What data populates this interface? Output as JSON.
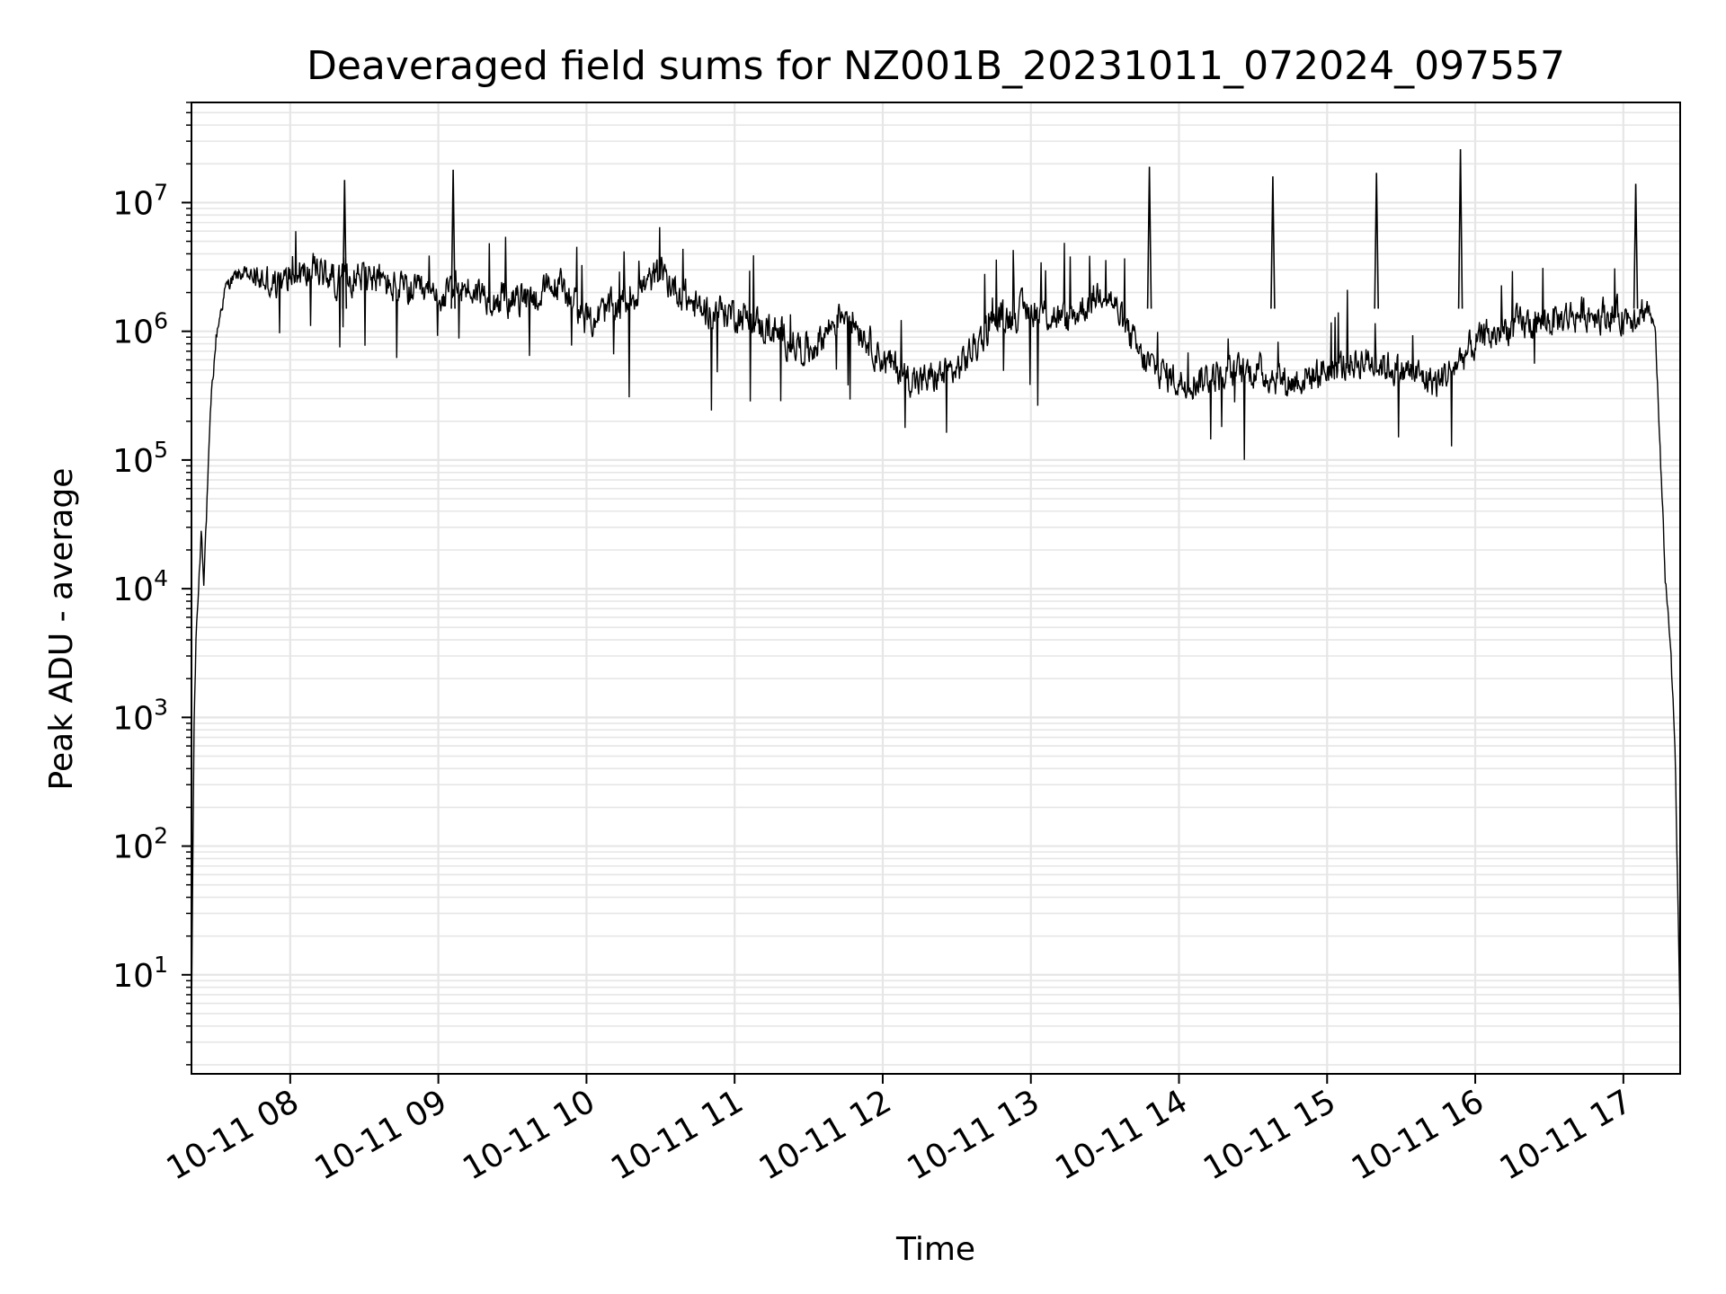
{
  "chart_data": {
    "type": "line",
    "title": "Deaveraged field sums for NZ001B_20231011_072024_097557",
    "xlabel": "Time",
    "ylabel": "Peak ADU - average",
    "yscale": "log",
    "grid": "on (major and minor)",
    "line_color": "#000000",
    "x_axis": {
      "unit": "datetime",
      "range": [
        "2023-10-11 07:20",
        "2023-10-11 17:23"
      ],
      "ticks": [
        "2023-10-11 08:00",
        "2023-10-11 09:00",
        "2023-10-11 10:00",
        "2023-10-11 11:00",
        "2023-10-11 12:00",
        "2023-10-11 13:00",
        "2023-10-11 14:00",
        "2023-10-11 15:00",
        "2023-10-11 16:00",
        "2023-10-11 17:00"
      ],
      "tick_labels": [
        "10-11 08",
        "10-11 09",
        "10-11 10",
        "10-11 11",
        "10-11 12",
        "10-11 13",
        "10-11 14",
        "10-11 15",
        "10-11 16",
        "10-11 17"
      ]
    },
    "y_axis": {
      "range": [
        1.7,
        60000000
      ],
      "tick_values": [
        10,
        100,
        1000,
        10000,
        100000,
        1000000,
        10000000
      ],
      "tick_labels": [
        {
          "base": "10",
          "exp": "1"
        },
        {
          "base": "10",
          "exp": "2"
        },
        {
          "base": "10",
          "exp": "3"
        },
        {
          "base": "10",
          "exp": "4"
        },
        {
          "base": "10",
          "exp": "5"
        },
        {
          "base": "10",
          "exp": "6"
        },
        {
          "base": "10",
          "exp": "7"
        }
      ]
    },
    "series": [
      {
        "x": [
          "2023-10-11 07:20",
          "2023-10-11 07:21",
          "2023-10-11 07:22",
          "2023-10-11 07:23",
          "2023-10-11 07:24",
          "2023-10-11 07:25",
          "2023-10-11 07:27",
          "2023-10-11 07:28",
          "2023-10-11 07:30",
          "2023-10-11 07:32",
          "2023-10-11 07:34",
          "2023-10-11 07:36",
          "2023-10-11 07:40",
          "2023-10-11 07:45",
          "2023-10-11 07:50",
          "2023-10-11 07:55",
          "2023-10-11 08:00",
          "2023-10-11 08:10",
          "2023-10-11 08:20",
          "2023-10-11 08:30",
          "2023-10-11 08:40",
          "2023-10-11 08:50",
          "2023-10-11 09:00",
          "2023-10-11 09:10",
          "2023-10-11 09:20",
          "2023-10-11 09:30",
          "2023-10-11 09:40",
          "2023-10-11 09:50",
          "2023-10-11 10:00",
          "2023-10-11 10:15",
          "2023-10-11 10:30",
          "2023-10-11 10:45",
          "2023-10-11 11:00",
          "2023-10-11 11:15",
          "2023-10-11 11:30",
          "2023-10-11 11:45",
          "2023-10-11 12:00",
          "2023-10-11 12:15",
          "2023-10-11 12:30",
          "2023-10-11 12:45",
          "2023-10-11 13:00",
          "2023-10-11 13:15",
          "2023-10-11 13:30",
          "2023-10-11 13:45",
          "2023-10-11 14:00",
          "2023-10-11 14:15",
          "2023-10-11 14:30",
          "2023-10-11 14:45",
          "2023-10-11 15:00",
          "2023-10-11 15:15",
          "2023-10-11 15:30",
          "2023-10-11 15:45",
          "2023-10-11 16:00",
          "2023-10-11 16:15",
          "2023-10-11 16:30",
          "2023-10-11 16:45",
          "2023-10-11 17:00",
          "2023-10-11 17:10",
          "2023-10-11 17:13",
          "2023-10-11 17:15",
          "2023-10-11 17:17",
          "2023-10-11 17:19",
          "2023-10-11 17:21",
          "2023-10-11 17:23"
        ],
        "y": [
          4,
          800,
          5000,
          11000,
          30000,
          12000,
          100000,
          300000,
          900000,
          1500000,
          2200000,
          2500000,
          2800000,
          2600000,
          2500000,
          2200000,
          2600000,
          3000000,
          2500000,
          2800000,
          2300000,
          2000000,
          1800000,
          2200000,
          1900000,
          1700000,
          1900000,
          2300000,
          1200000,
          1700000,
          2800000,
          1500000,
          1400000,
          1000000,
          700000,
          1500000,
          600000,
          400000,
          500000,
          1200000,
          1500000,
          1200000,
          2200000,
          600000,
          400000,
          450000,
          500000,
          400000,
          500000,
          600000,
          500000,
          400000,
          800000,
          1100000,
          1200000,
          1400000,
          1300000,
          1500000,
          1000000,
          100000,
          12000,
          4000,
          500,
          4
        ]
      }
    ],
    "spikes": [
      {
        "x": "2023-10-11 08:22",
        "y": 15000000
      },
      {
        "x": "2023-10-11 09:06",
        "y": 18000000
      },
      {
        "x": "2023-10-11 13:48",
        "y": 19000000
      },
      {
        "x": "2023-10-11 14:38",
        "y": 16000000
      },
      {
        "x": "2023-10-11 15:20",
        "y": 17000000
      },
      {
        "x": "2023-10-11 15:54",
        "y": 26000000
      },
      {
        "x": "2023-10-11 17:05",
        "y": 14000000
      }
    ]
  }
}
